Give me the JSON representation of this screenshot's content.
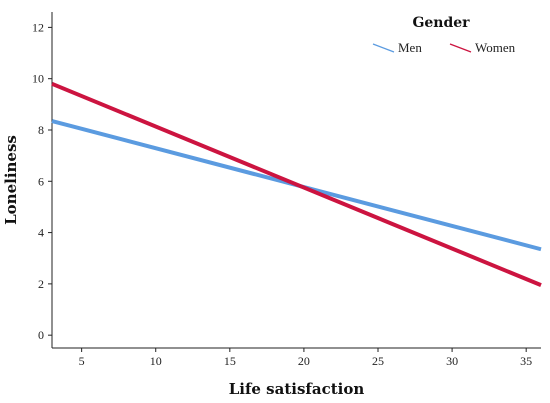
{
  "chart_data": {
    "type": "line",
    "xlabel": "Life satisfaction",
    "ylabel": "Loneliness",
    "xlim": [
      3,
      36
    ],
    "ylim": [
      -0.5,
      12.6
    ],
    "xticks": [
      5,
      10,
      15,
      20,
      25,
      30,
      35
    ],
    "yticks": [
      0,
      2,
      4,
      6,
      8,
      10,
      12
    ],
    "grid": false,
    "legend": {
      "title": "Gender",
      "placement": "top-right"
    },
    "series": [
      {
        "name": "Men",
        "color": "#5b9be0",
        "x": [
          3,
          36
        ],
        "y": [
          8.35,
          3.35
        ]
      },
      {
        "name": "Women",
        "color": "#cc1440",
        "x": [
          3,
          36
        ],
        "y": [
          9.8,
          1.95
        ]
      }
    ]
  }
}
